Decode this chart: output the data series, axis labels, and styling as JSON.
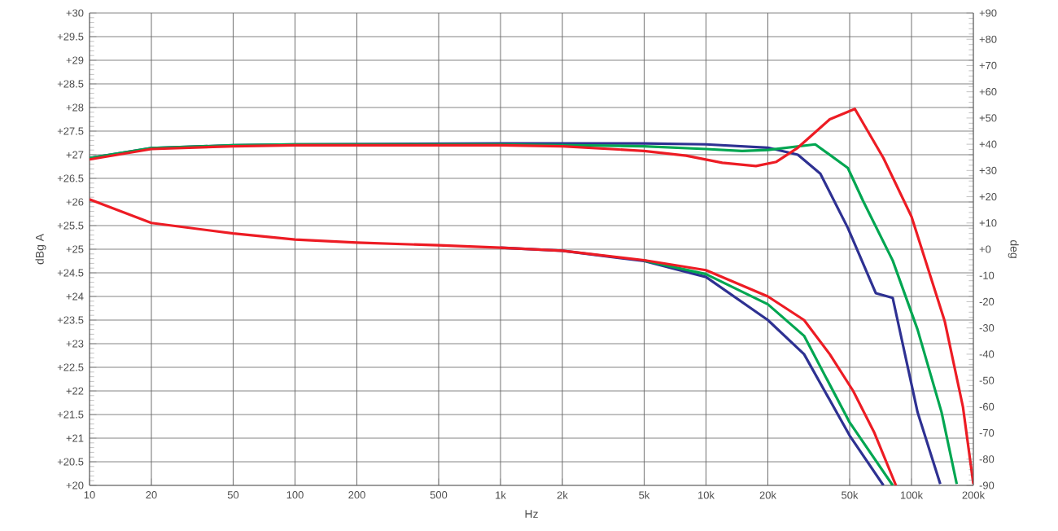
{
  "chart_data": {
    "type": "line",
    "xlabel": "Hz",
    "ylabel": "dBg A",
    "y2label": "deg",
    "log": "x",
    "grid": true,
    "marker": "none",
    "line_style": "solid",
    "xlim": [
      10,
      200000
    ],
    "ylim": [
      20,
      30
    ],
    "y2lim": [
      -90,
      90
    ],
    "xticks": [
      10,
      20,
      50,
      100,
      200,
      500,
      {
        "value": 1000,
        "label": "1k"
      },
      {
        "value": 2000,
        "label": "2k"
      },
      {
        "value": 5000,
        "label": "5k"
      },
      {
        "value": 10000,
        "label": "10k"
      },
      {
        "value": 20000,
        "label": "20k"
      },
      {
        "value": 50000,
        "label": "50k"
      },
      {
        "value": 100000,
        "label": "100k"
      },
      {
        "value": 200000,
        "label": "200k"
      }
    ],
    "yticks": [
      {
        "value": 20,
        "label": "+20"
      },
      {
        "value": 20.5,
        "label": "+20.5"
      },
      {
        "value": 21,
        "label": "+21"
      },
      {
        "value": 21.5,
        "label": "+21.5"
      },
      {
        "value": 22,
        "label": "+22"
      },
      {
        "value": 22.5,
        "label": "+22.5"
      },
      {
        "value": 23,
        "label": "+23"
      },
      {
        "value": 23.5,
        "label": "+23.5"
      },
      {
        "value": 24,
        "label": "+24"
      },
      {
        "value": 24.5,
        "label": "+24.5"
      },
      {
        "value": 25,
        "label": "+25"
      },
      {
        "value": 25.5,
        "label": "+25.5"
      },
      {
        "value": 26,
        "label": "+26"
      },
      {
        "value": 26.5,
        "label": "+26.5"
      },
      {
        "value": 27,
        "label": "+27"
      },
      {
        "value": 27.5,
        "label": "+27.5"
      },
      {
        "value": 28,
        "label": "+28"
      },
      {
        "value": 28.5,
        "label": "+28.5"
      },
      {
        "value": 29,
        "label": "+29"
      },
      {
        "value": 29.5,
        "label": "+29.5"
      },
      {
        "value": 30,
        "label": "+30"
      }
    ],
    "y2ticks": [
      {
        "value": -90,
        "label": "-90"
      },
      {
        "value": -80,
        "label": "-80"
      },
      {
        "value": -70,
        "label": "-70"
      },
      {
        "value": -60,
        "label": "-60"
      },
      {
        "value": -50,
        "label": "-50"
      },
      {
        "value": -40,
        "label": "-40"
      },
      {
        "value": -30,
        "label": "-30"
      },
      {
        "value": -20,
        "label": "-20"
      },
      {
        "value": -10,
        "label": "-10"
      },
      {
        "value": 0,
        "label": "+0"
      },
      {
        "value": 10,
        "label": "+10"
      },
      {
        "value": 20,
        "label": "+20"
      },
      {
        "value": 30,
        "label": "+30"
      },
      {
        "value": 40,
        "label": "+40"
      },
      {
        "value": 50,
        "label": "+50"
      },
      {
        "value": 60,
        "label": "+60"
      },
      {
        "value": 70,
        "label": "+70"
      },
      {
        "value": 80,
        "label": "+80"
      },
      {
        "value": 90,
        "label": "+90"
      }
    ],
    "series": [
      {
        "color": "#2e3192",
        "x": [
          10,
          20,
          50,
          100,
          1000,
          5000,
          10000,
          20000,
          28000,
          36000,
          49000,
          67000,
          81000,
          107000,
          138000
        ],
        "values": [
          26.93,
          27.14,
          27.2,
          27.22,
          27.24,
          27.24,
          27.22,
          27.15,
          27.0,
          26.6,
          25.45,
          24.07,
          23.97,
          21.55,
          20.03
        ]
      },
      {
        "color": "#00a651",
        "x": [
          10,
          20,
          50,
          100,
          1000,
          5000,
          10000,
          15000,
          20000,
          34000,
          49000,
          58000,
          81000,
          107000,
          140000,
          166000
        ],
        "values": [
          26.93,
          27.14,
          27.2,
          27.22,
          27.22,
          27.18,
          27.12,
          27.08,
          27.1,
          27.22,
          26.72,
          26.03,
          24.76,
          23.3,
          21.55,
          20.03
        ]
      },
      {
        "color": "#ed1c24",
        "x": [
          10,
          20,
          50,
          100,
          1000,
          2000,
          5000,
          8000,
          12000,
          17500,
          22000,
          28000,
          40000,
          53000,
          73000,
          100000,
          145000,
          178000,
          200000
        ],
        "values": [
          26.9,
          27.12,
          27.18,
          27.2,
          27.2,
          27.18,
          27.08,
          26.98,
          26.83,
          26.76,
          26.85,
          27.15,
          27.75,
          27.97,
          26.93,
          25.69,
          23.48,
          21.66,
          20.03
        ]
      },
      {
        "color": "#2e3192",
        "axis": "y2",
        "x": [
          1000,
          2000,
          5000,
          10000,
          20000,
          30000,
          50000,
          73000
        ],
        "values": [
          0.6,
          -0.6,
          -4.5,
          -10.6,
          -27,
          -40,
          -71,
          -90
        ]
      },
      {
        "color": "#00a651",
        "axis": "y2",
        "x": [
          5000,
          10000,
          20000,
          30000,
          50000,
          81000
        ],
        "values": [
          -4.3,
          -9.5,
          -21,
          -33,
          -66,
          -90
        ]
      },
      {
        "color": "#ed1c24",
        "axis": "y2",
        "x": [
          10,
          20,
          50,
          100,
          200,
          500,
          1000,
          2000,
          5000,
          10000,
          20000,
          30000,
          40000,
          52000,
          66000,
          84000
        ],
        "values": [
          19,
          10,
          6,
          3.7,
          2.5,
          1.5,
          0.6,
          -0.6,
          -4.2,
          -8,
          -18,
          -27,
          -40,
          -54,
          -70,
          -90
        ]
      }
    ]
  }
}
